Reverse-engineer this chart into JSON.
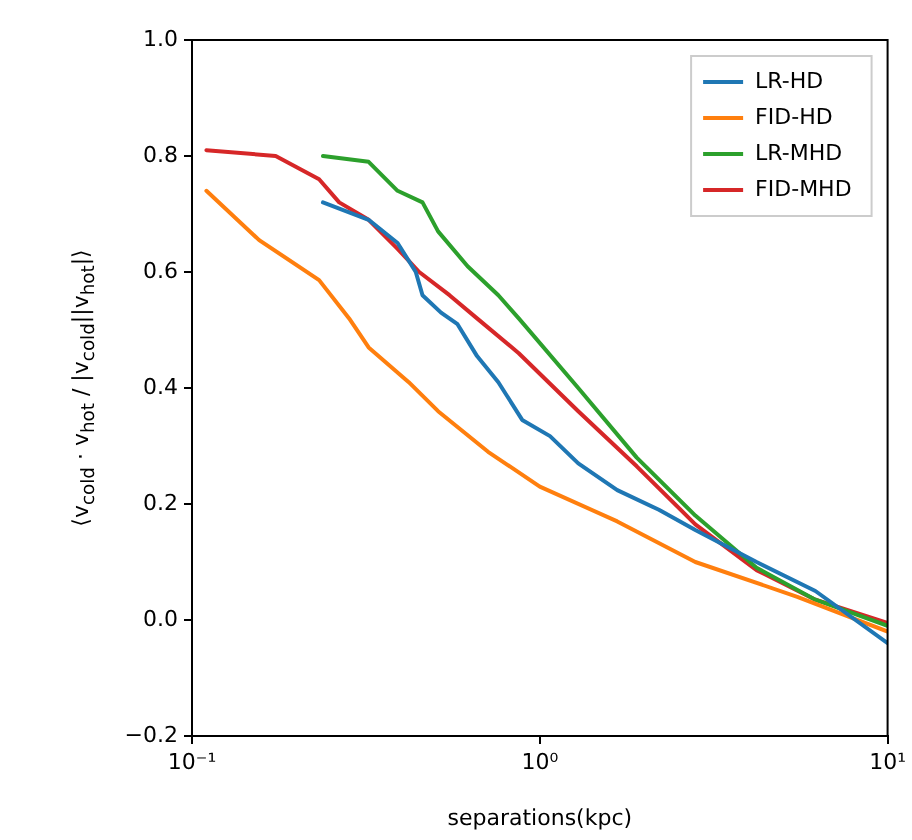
{
  "chart_data": {
    "type": "line",
    "xlabel": "separations(kpc)",
    "ylabel": "⟨v$_{cold}$ · v$_{hot}$ / |v$_{cold}$||v$_{hot}$|⟩",
    "log": "x",
    "xlim": [
      0.1,
      10
    ],
    "xticks": [
      {
        "value": 0.1,
        "label": "10⁻¹"
      },
      {
        "value": 1,
        "label": "10⁰"
      },
      {
        "value": 10,
        "label": "10¹"
      }
    ],
    "ylim": [
      -0.2,
      1.0
    ],
    "yticks": [
      {
        "value": -0.2,
        "label": "−0.2"
      },
      {
        "value": 0,
        "label": "0.0"
      },
      {
        "value": 0.2,
        "label": "0.2"
      },
      {
        "value": 0.4,
        "label": "0.4"
      },
      {
        "value": 0.6,
        "label": "0.6"
      },
      {
        "value": 0.8,
        "label": "0.8"
      },
      {
        "value": 1.0,
        "label": "1.0"
      }
    ],
    "grid": false,
    "legend": "top right",
    "marker": "none",
    "line_style": "solid",
    "series": [
      {
        "name": "LR-HD",
        "color": "#1f77b4",
        "x": [
          0.238,
          0.322,
          0.39,
          0.44,
          0.46,
          0.52,
          0.58,
          0.66,
          0.76,
          0.89,
          1.07,
          1.29,
          1.67,
          2.2,
          2.8,
          4.2,
          6.2,
          10
        ],
        "values": [
          0.72,
          0.69,
          0.65,
          0.6,
          0.56,
          0.53,
          0.51,
          0.455,
          0.41,
          0.345,
          0.317,
          0.27,
          0.224,
          0.19,
          0.155,
          0.1,
          0.05,
          -0.04
        ]
      },
      {
        "name": "FID-HD",
        "color": "#ff7f0e",
        "x": [
          0.11,
          0.156,
          0.232,
          0.283,
          0.322,
          0.42,
          0.51,
          0.71,
          1.0,
          1.67,
          2.8,
          5.5,
          10
        ],
        "values": [
          0.74,
          0.655,
          0.586,
          0.52,
          0.47,
          0.41,
          0.36,
          0.29,
          0.23,
          0.17,
          0.1,
          0.04,
          -0.02
        ]
      },
      {
        "name": "LR-MHD",
        "color": "#2ca02c",
        "x": [
          0.238,
          0.322,
          0.39,
          0.46,
          0.51,
          0.62,
          0.76,
          0.87,
          1.29,
          1.9,
          2.8,
          4.2,
          6.2,
          10
        ],
        "values": [
          0.8,
          0.79,
          0.74,
          0.72,
          0.67,
          0.61,
          0.56,
          0.52,
          0.4,
          0.28,
          0.18,
          0.09,
          0.035,
          -0.01
        ]
      },
      {
        "name": "FID-MHD",
        "color": "#d62728",
        "x": [
          0.11,
          0.174,
          0.232,
          0.265,
          0.322,
          0.39,
          0.45,
          0.55,
          0.66,
          0.87,
          1.29,
          1.9,
          2.8,
          4.2,
          6.2,
          10
        ],
        "values": [
          0.81,
          0.8,
          0.76,
          0.72,
          0.69,
          0.64,
          0.6,
          0.56,
          0.52,
          0.46,
          0.36,
          0.265,
          0.165,
          0.086,
          0.035,
          -0.005
        ]
      }
    ]
  }
}
